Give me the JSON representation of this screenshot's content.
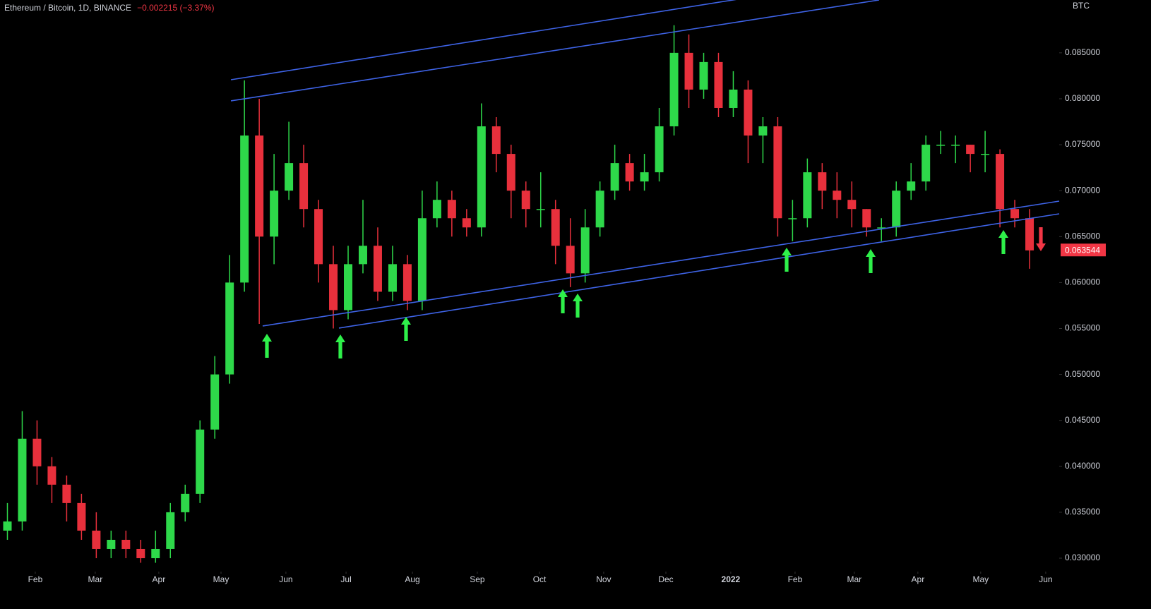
{
  "chart_data": {
    "type": "candlestick",
    "title": "Ethereum / Bitcoin, 1D, BINANCE",
    "change": "−0.002215 (−3.37%)",
    "currency": "BTC",
    "last_price": {
      "value": 0.063544,
      "label": "0.063544"
    },
    "up_color": "#2ed84a",
    "down_color": "#e8303c",
    "line_color": "#3e63e6",
    "categories": [
      null,
      null,
      null,
      null,
      null,
      null,
      null,
      null,
      null,
      null,
      null,
      null,
      null,
      null,
      null,
      null,
      null,
      null,
      null,
      null,
      null,
      null,
      null,
      null,
      null,
      null,
      null,
      null,
      null,
      null,
      null,
      null,
      null,
      null,
      null,
      null,
      null,
      null,
      null,
      null,
      null,
      null,
      null,
      null,
      null,
      null,
      null,
      null,
      null,
      null,
      null,
      null,
      null,
      null,
      null,
      null,
      null,
      null,
      null,
      null,
      null,
      null,
      null,
      null,
      null,
      null,
      null,
      null,
      null,
      null
    ],
    "open": [
      0.033,
      0.034,
      0.043,
      0.04,
      0.038,
      0.036,
      0.033,
      0.031,
      0.032,
      0.031,
      0.03,
      0.031,
      0.035,
      0.037,
      0.044,
      0.05,
      0.06,
      0.076,
      0.065,
      0.07,
      0.073,
      0.068,
      0.062,
      0.057,
      0.062,
      0.064,
      0.059,
      0.062,
      0.058,
      0.067,
      0.069,
      0.067,
      0.066,
      0.077,
      0.074,
      0.07,
      0.068,
      0.068,
      0.064,
      0.061,
      0.066,
      0.07,
      0.073,
      0.071,
      0.072,
      0.077,
      0.085,
      0.081,
      0.084,
      0.079,
      0.081,
      0.076,
      0.077,
      0.067,
      0.067,
      0.072,
      0.07,
      0.069,
      0.068,
      0.066,
      0.066,
      0.07,
      0.071,
      0.075,
      0.075,
      0.075,
      0.074,
      0.074,
      0.068,
      0.067
    ],
    "high": [
      0.036,
      0.046,
      0.045,
      0.041,
      0.039,
      0.037,
      0.035,
      0.033,
      0.033,
      0.032,
      0.033,
      0.036,
      0.038,
      0.045,
      0.052,
      0.063,
      0.082,
      0.08,
      0.074,
      0.0775,
      0.075,
      0.069,
      0.064,
      0.064,
      0.069,
      0.066,
      0.064,
      0.063,
      0.07,
      0.071,
      0.07,
      0.068,
      0.0795,
      0.078,
      0.075,
      0.071,
      0.072,
      0.069,
      0.067,
      0.068,
      0.071,
      0.075,
      0.074,
      0.074,
      0.079,
      0.088,
      0.087,
      0.085,
      0.085,
      0.083,
      0.082,
      0.078,
      0.078,
      0.069,
      0.0735,
      0.073,
      0.072,
      0.071,
      0.068,
      0.067,
      0.071,
      0.073,
      0.076,
      0.0765,
      0.076,
      0.075,
      0.0765,
      0.0745,
      0.069,
      0.068
    ],
    "low": [
      0.032,
      0.033,
      0.038,
      0.036,
      0.034,
      0.032,
      0.03,
      0.03,
      0.03,
      0.0295,
      0.0295,
      0.03,
      0.034,
      0.036,
      0.043,
      0.049,
      0.059,
      0.0555,
      0.062,
      0.069,
      0.066,
      0.06,
      0.055,
      0.056,
      0.061,
      0.058,
      0.058,
      0.057,
      0.057,
      0.066,
      0.065,
      0.065,
      0.065,
      0.072,
      0.067,
      0.066,
      0.066,
      0.062,
      0.0595,
      0.06,
      0.065,
      0.069,
      0.07,
      0.07,
      0.071,
      0.076,
      0.079,
      0.08,
      0.078,
      0.078,
      0.073,
      0.073,
      0.065,
      0.0645,
      0.066,
      0.068,
      0.067,
      0.066,
      0.065,
      0.0645,
      0.065,
      0.069,
      0.07,
      0.074,
      0.073,
      0.072,
      0.072,
      0.066,
      0.066,
      0.0615
    ],
    "close": [
      0.034,
      0.043,
      0.04,
      0.038,
      0.036,
      0.033,
      0.031,
      0.032,
      0.031,
      0.03,
      0.031,
      0.035,
      0.037,
      0.044,
      0.05,
      0.06,
      0.076,
      0.065,
      0.07,
      0.073,
      0.068,
      0.062,
      0.057,
      0.062,
      0.064,
      0.059,
      0.062,
      0.058,
      0.067,
      0.069,
      0.067,
      0.066,
      0.077,
      0.074,
      0.07,
      0.068,
      0.068,
      0.064,
      0.061,
      0.066,
      0.07,
      0.073,
      0.071,
      0.072,
      0.077,
      0.085,
      0.081,
      0.084,
      0.079,
      0.081,
      0.076,
      0.077,
      0.067,
      0.067,
      0.072,
      0.07,
      0.069,
      0.068,
      0.066,
      0.066,
      0.07,
      0.071,
      0.075,
      0.075,
      0.075,
      0.074,
      0.074,
      0.068,
      0.067,
      0.0635
    ],
    "trendlines": [
      {
        "x": [
          15.09,
          50.5
        ],
        "y": [
          0.08207,
          0.09114
        ]
      },
      {
        "x": [
          15.09,
          58.84
        ],
        "y": [
          0.07977,
          0.09075
        ]
      },
      {
        "x": [
          17.23,
          71.0
        ],
        "y": [
          0.05527,
          0.06886
        ]
      },
      {
        "x": [
          22.38,
          71.0
        ],
        "y": [
          0.05504,
          0.06748
        ]
      }
    ],
    "xlim": [
      -0.5,
      71
    ],
    "ylim": [
      0.02447,
      0.09075
    ],
    "xticks": [
      {
        "value": 1.88,
        "label": "Feb"
      },
      {
        "value": 5.93,
        "label": "Mar"
      },
      {
        "value": 10.22,
        "label": "Apr"
      },
      {
        "value": 14.42,
        "label": "May"
      },
      {
        "value": 18.8,
        "label": "Jun"
      },
      {
        "value": 22.86,
        "label": "Jul"
      },
      {
        "value": 27.34,
        "label": "Aug"
      },
      {
        "value": 31.72,
        "label": "Sep"
      },
      {
        "value": 35.92,
        "label": "Oct"
      },
      {
        "value": 40.25,
        "label": "Nov"
      },
      {
        "value": 44.45,
        "label": "Dec"
      },
      {
        "value": 48.83,
        "label": "2022"
      },
      {
        "value": 53.17,
        "label": "Feb"
      },
      {
        "value": 57.17,
        "label": "Mar"
      },
      {
        "value": 61.46,
        "label": "Apr"
      },
      {
        "value": 65.7,
        "label": "May"
      },
      {
        "value": 70.09,
        "label": "Jun"
      }
    ],
    "yticks": [
      {
        "value": 0.03,
        "label": "0.030000"
      },
      {
        "value": 0.035,
        "label": "0.035000"
      },
      {
        "value": 0.04,
        "label": "0.040000"
      },
      {
        "value": 0.045,
        "label": "0.045000"
      },
      {
        "value": 0.05,
        "label": "0.050000"
      },
      {
        "value": 0.055,
        "label": "0.055000"
      },
      {
        "value": 0.06,
        "label": "0.060000"
      },
      {
        "value": 0.065,
        "label": "0.065000"
      },
      {
        "value": 0.07,
        "label": "0.070000"
      },
      {
        "value": 0.075,
        "label": "0.075000"
      },
      {
        "value": 0.08,
        "label": "0.080000"
      },
      {
        "value": 0.085,
        "label": "0.085000"
      }
    ]
  }
}
